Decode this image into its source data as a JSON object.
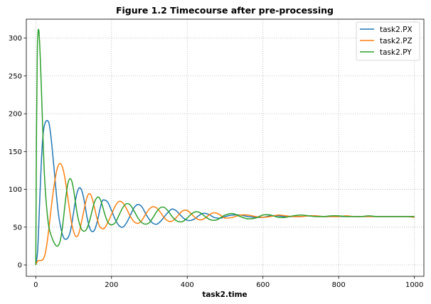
{
  "chart_data": {
    "type": "line",
    "title": "Figure 1.2 Timecourse after pre-processing",
    "xlabel": "task2.time",
    "ylabel": "",
    "xlim": [
      -25,
      1025
    ],
    "ylim": [
      -15,
      325
    ],
    "xticks": [
      0,
      200,
      400,
      600,
      800,
      1000
    ],
    "yticks": [
      0,
      50,
      100,
      150,
      200,
      250,
      300
    ],
    "grid": true,
    "legend_position": "top-right",
    "series": [
      {
        "name": "task2.PX",
        "color": "#1f77b4",
        "x": [
          0,
          5,
          10,
          15,
          20,
          25,
          30,
          35,
          40,
          45,
          50,
          55,
          60,
          65,
          70,
          75,
          80,
          85,
          90,
          95,
          100,
          105,
          110,
          115,
          120,
          125,
          130,
          135,
          140,
          145,
          150,
          155,
          160,
          165,
          170,
          175,
          180,
          190,
          200,
          210,
          220,
          230,
          240,
          250,
          260,
          270,
          280,
          290,
          300,
          310,
          320,
          330,
          340,
          350,
          360,
          370,
          380,
          390,
          400,
          410,
          420,
          430,
          440,
          450,
          460,
          470,
          480,
          490,
          500,
          520,
          540,
          560,
          580,
          600,
          620,
          640,
          660,
          680,
          700,
          720,
          740,
          760,
          780,
          800,
          820,
          840,
          860,
          880,
          900,
          920,
          940,
          960,
          980,
          1000
        ],
        "y": [
          0,
          20,
          80,
          140,
          176,
          188,
          191,
          187,
          170,
          145,
          118,
          90,
          67,
          52,
          41,
          35,
          34,
          36,
          42,
          54,
          70,
          86,
          97,
          102,
          100,
          92,
          79,
          64,
          53,
          46,
          44,
          46,
          53,
          63,
          75,
          84,
          86,
          83,
          72,
          60,
          52,
          50,
          56,
          66,
          76,
          80,
          77,
          68,
          60,
          55,
          54,
          58,
          64,
          70,
          74,
          72,
          67,
          62,
          59,
          59,
          61,
          65,
          68,
          68,
          66,
          63,
          62,
          62,
          64,
          66,
          66,
          64,
          63,
          63,
          65,
          65,
          64,
          64,
          64,
          65,
          65,
          64,
          64,
          64,
          64,
          64,
          64,
          64,
          64,
          64,
          64,
          64,
          64,
          64
        ]
      },
      {
        "name": "task2.PZ",
        "color": "#ff7f0e",
        "x": [
          0,
          5,
          10,
          15,
          20,
          25,
          30,
          35,
          40,
          45,
          50,
          55,
          60,
          65,
          70,
          75,
          80,
          85,
          90,
          95,
          100,
          105,
          110,
          115,
          120,
          125,
          130,
          135,
          140,
          145,
          150,
          155,
          160,
          165,
          170,
          180,
          190,
          200,
          210,
          220,
          230,
          240,
          250,
          260,
          270,
          280,
          290,
          300,
          310,
          320,
          330,
          340,
          350,
          360,
          370,
          380,
          390,
          400,
          410,
          420,
          430,
          440,
          450,
          460,
          470,
          480,
          490,
          500,
          520,
          540,
          560,
          580,
          600,
          620,
          640,
          660,
          680,
          700,
          720,
          740,
          760,
          780,
          800,
          820,
          840,
          860,
          880,
          900,
          920,
          940,
          960,
          980,
          1000
        ],
        "y": [
          0,
          5,
          6,
          6,
          8,
          15,
          30,
          50,
          72,
          93,
          110,
          124,
          132,
          134,
          130,
          120,
          105,
          88,
          70,
          54,
          44,
          38,
          38,
          44,
          55,
          67,
          79,
          89,
          94,
          93,
          86,
          76,
          65,
          56,
          50,
          48,
          56,
          67,
          78,
          84,
          82,
          74,
          64,
          57,
          55,
          59,
          67,
          74,
          77,
          75,
          69,
          62,
          58,
          58,
          62,
          68,
          72,
          72,
          68,
          63,
          60,
          60,
          63,
          67,
          69,
          68,
          65,
          62,
          63,
          66,
          66,
          64,
          63,
          64,
          66,
          65,
          64,
          64,
          65,
          65,
          64,
          64,
          64,
          65,
          64,
          64,
          64,
          64,
          64,
          64,
          64,
          64,
          63
        ]
      },
      {
        "name": "task2.PY",
        "color": "#2ca02c",
        "x": [
          0,
          2,
          4,
          6,
          8,
          10,
          12,
          14,
          16,
          18,
          20,
          22,
          25,
          28,
          31,
          34,
          37,
          40,
          45,
          50,
          55,
          60,
          65,
          70,
          75,
          80,
          85,
          90,
          95,
          100,
          105,
          110,
          115,
          120,
          125,
          130,
          135,
          140,
          145,
          150,
          155,
          160,
          165,
          170,
          175,
          180,
          185,
          190,
          195,
          200,
          210,
          220,
          230,
          240,
          250,
          260,
          270,
          280,
          290,
          300,
          310,
          320,
          330,
          340,
          350,
          360,
          370,
          380,
          390,
          400,
          410,
          420,
          430,
          440,
          450,
          460,
          470,
          480,
          490,
          500,
          520,
          540,
          560,
          580,
          600,
          620,
          640,
          660,
          680,
          700,
          720,
          740,
          760,
          780,
          800,
          820,
          840,
          860,
          880,
          900,
          920,
          940,
          960,
          980,
          1000
        ],
        "y": [
          0,
          180,
          280,
          308,
          310,
          296,
          272,
          245,
          215,
          185,
          155,
          128,
          100,
          80,
          64,
          52,
          45,
          40,
          33,
          28,
          25,
          26,
          33,
          48,
          70,
          92,
          108,
          114,
          111,
          99,
          82,
          66,
          55,
          48,
          45,
          45,
          48,
          55,
          64,
          74,
          83,
          88,
          90,
          87,
          80,
          71,
          63,
          57,
          54,
          53,
          56,
          66,
          76,
          81,
          79,
          71,
          62,
          56,
          54,
          56,
          63,
          71,
          76,
          76,
          71,
          64,
          59,
          57,
          58,
          62,
          67,
          70,
          70,
          67,
          63,
          60,
          59,
          60,
          63,
          66,
          68,
          64,
          61,
          62,
          66,
          66,
          63,
          63,
          65,
          66,
          65,
          64,
          64,
          65,
          65,
          64,
          64,
          64,
          65,
          64,
          64,
          64,
          64,
          64,
          64
        ]
      }
    ]
  }
}
